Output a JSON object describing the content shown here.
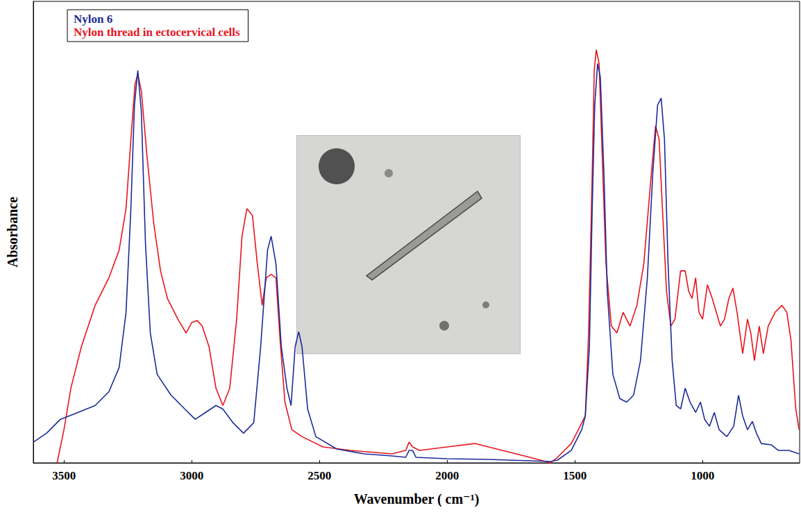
{
  "chart_data": {
    "type": "line",
    "x_label": "Wavenumber ( cm⁻¹)",
    "y_label": "Absorbance",
    "xlim": [
      3620,
      620
    ],
    "xticks": [
      3500,
      3000,
      2500,
      2000,
      1500,
      1000
    ],
    "ylim": [
      0,
      668
    ],
    "tick_labels": "x",
    "grid": false,
    "legend": "upper left",
    "series": [
      {
        "name": "Nylon 6",
        "color": "#1c2a96",
        "line_style": "solid",
        "x": [
          3620,
          3568,
          3514,
          3459,
          3378,
          3324,
          3284,
          3257,
          3238,
          3224,
          3211,
          3197,
          3181,
          3162,
          3135,
          3081,
          3027,
          2986,
          2946,
          2905,
          2878,
          2838,
          2797,
          2757,
          2730,
          2703,
          2689,
          2670,
          2649,
          2627,
          2611,
          2595,
          2581,
          2568,
          2546,
          2514,
          2432,
          2324,
          2216,
          2162,
          2149,
          2135,
          2122,
          2000,
          1838,
          1676,
          1595,
          1568,
          1514,
          1473,
          1459,
          1443,
          1432,
          1422,
          1411,
          1400,
          1386,
          1373,
          1351,
          1324,
          1297,
          1270,
          1243,
          1216,
          1195,
          1176,
          1162,
          1149,
          1135,
          1119,
          1103,
          1086,
          1068,
          1049,
          1027,
          1008,
          992,
          973,
          954,
          935,
          905,
          878,
          859,
          843,
          824,
          805,
          789,
          770,
          730,
          703,
          662,
          622
        ],
        "values": [
          30,
          43,
          63,
          71,
          83,
          103,
          138,
          218,
          368,
          518,
          568,
          508,
          318,
          188,
          128,
          98,
          78,
          63,
          73,
          83,
          78,
          58,
          43,
          58,
          168,
          308,
          328,
          288,
          168,
          108,
          83,
          168,
          190,
          168,
          78,
          38,
          20,
          13,
          10,
          8,
          18,
          18,
          8,
          6,
          5,
          3,
          2,
          4,
          18,
          48,
          68,
          168,
          368,
          518,
          578,
          558,
          418,
          248,
          128,
          93,
          88,
          98,
          148,
          268,
          418,
          518,
          528,
          468,
          288,
          148,
          83,
          78,
          108,
          88,
          73,
          88,
          63,
          53,
          73,
          48,
          38,
          53,
          98,
          68,
          48,
          60,
          43,
          28,
          26,
          18,
          18,
          13
        ]
      },
      {
        "name": "Nylon thread in ectocervical cells",
        "color": "#e8141e",
        "line_style": "solid",
        "x": [
          3527,
          3500,
          3473,
          3432,
          3378,
          3324,
          3284,
          3257,
          3238,
          3222,
          3211,
          3197,
          3176,
          3149,
          3122,
          3095,
          3054,
          3022,
          3000,
          2978,
          2959,
          2932,
          2905,
          2878,
          2851,
          2824,
          2803,
          2784,
          2762,
          2743,
          2724,
          2708,
          2689,
          2670,
          2654,
          2635,
          2608,
          2568,
          2486,
          2378,
          2216,
          2162,
          2149,
          2135,
          2108,
          2000,
          1892,
          1784,
          1676,
          1595,
          1568,
          1541,
          1514,
          1486,
          1459,
          1446,
          1432,
          1424,
          1416,
          1405,
          1395,
          1378,
          1357,
          1335,
          1311,
          1284,
          1257,
          1230,
          1203,
          1184,
          1170,
          1157,
          1141,
          1124,
          1108,
          1086,
          1068,
          1054,
          1041,
          1027,
          1014,
          1000,
          981,
          962,
          946,
          930,
          914,
          897,
          881,
          865,
          843,
          824,
          811,
          797,
          778,
          762,
          743,
          716,
          689,
          670,
          654,
          635,
          622
        ],
        "values": [
          0,
          48,
          108,
          168,
          228,
          268,
          308,
          368,
          468,
          548,
          563,
          538,
          448,
          348,
          278,
          238,
          208,
          188,
          203,
          206,
          198,
          168,
          108,
          83,
          108,
          208,
          328,
          368,
          358,
          288,
          228,
          268,
          273,
          268,
          178,
          88,
          48,
          38,
          23,
          18,
          13,
          18,
          30,
          23,
          18,
          23,
          28,
          18,
          8,
          0,
          8,
          18,
          28,
          48,
          68,
          188,
          418,
          568,
          598,
          578,
          468,
          288,
          198,
          188,
          218,
          198,
          228,
          288,
          408,
          488,
          468,
          368,
          248,
          198,
          208,
          278,
          278,
          248,
          238,
          268,
          218,
          208,
          258,
          238,
          218,
          198,
          208,
          238,
          253,
          218,
          158,
          208,
          188,
          148,
          198,
          158,
          198,
          218,
          228,
          218,
          178,
          78,
          48
        ]
      }
    ]
  }
}
